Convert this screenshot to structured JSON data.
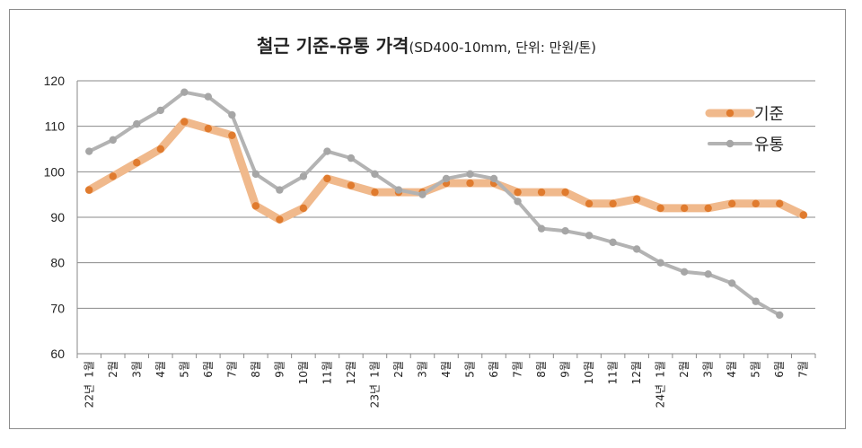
{
  "chart_data": {
    "type": "line",
    "title": "철근 기준-유통 가격",
    "subtitle": "(SD400-10mm, 단위: 만원/톤)",
    "ylim": [
      60,
      120
    ],
    "yticks": [
      60,
      70,
      80,
      90,
      100,
      110,
      120
    ],
    "grid": true,
    "legend_position": "top-right",
    "categories": [
      "1월",
      "2월",
      "3월",
      "4월",
      "5월",
      "6월",
      "7월",
      "8월",
      "9월",
      "10월",
      "11월",
      "12월",
      "1월",
      "2월",
      "3월",
      "4월",
      "5월",
      "6월",
      "7월",
      "8월",
      "9월",
      "10월",
      "11월",
      "12월",
      "1월",
      "2월",
      "3월",
      "4월",
      "5월",
      "6월",
      "7월"
    ],
    "year_labels": [
      {
        "index": 0,
        "label": "22년"
      },
      {
        "index": 12,
        "label": "23년"
      },
      {
        "index": 24,
        "label": "24년"
      }
    ],
    "series": [
      {
        "name": "기준",
        "color": "#f0b98c",
        "marker_color": "#e07b2e",
        "values": [
          96,
          99,
          102,
          105,
          111,
          109.5,
          108,
          92.5,
          89.5,
          92,
          98.5,
          97,
          95.5,
          95.5,
          95.5,
          97.5,
          97.5,
          97.5,
          95.5,
          95.5,
          95.5,
          93,
          93,
          94,
          92,
          92,
          92,
          93,
          93,
          93,
          90.5
        ]
      },
      {
        "name": "유통",
        "color": "#b3b3b3",
        "marker_color": "#a6a6a6",
        "values": [
          104.5,
          107,
          110.5,
          113.5,
          117.5,
          116.5,
          112.5,
          99.5,
          96,
          99,
          104.5,
          103,
          99.5,
          96,
          95,
          98.5,
          99.5,
          98.5,
          93.5,
          87.5,
          87,
          86,
          84.5,
          83,
          80,
          78,
          77.5,
          75.5,
          71.5,
          68.5,
          null
        ]
      }
    ]
  }
}
